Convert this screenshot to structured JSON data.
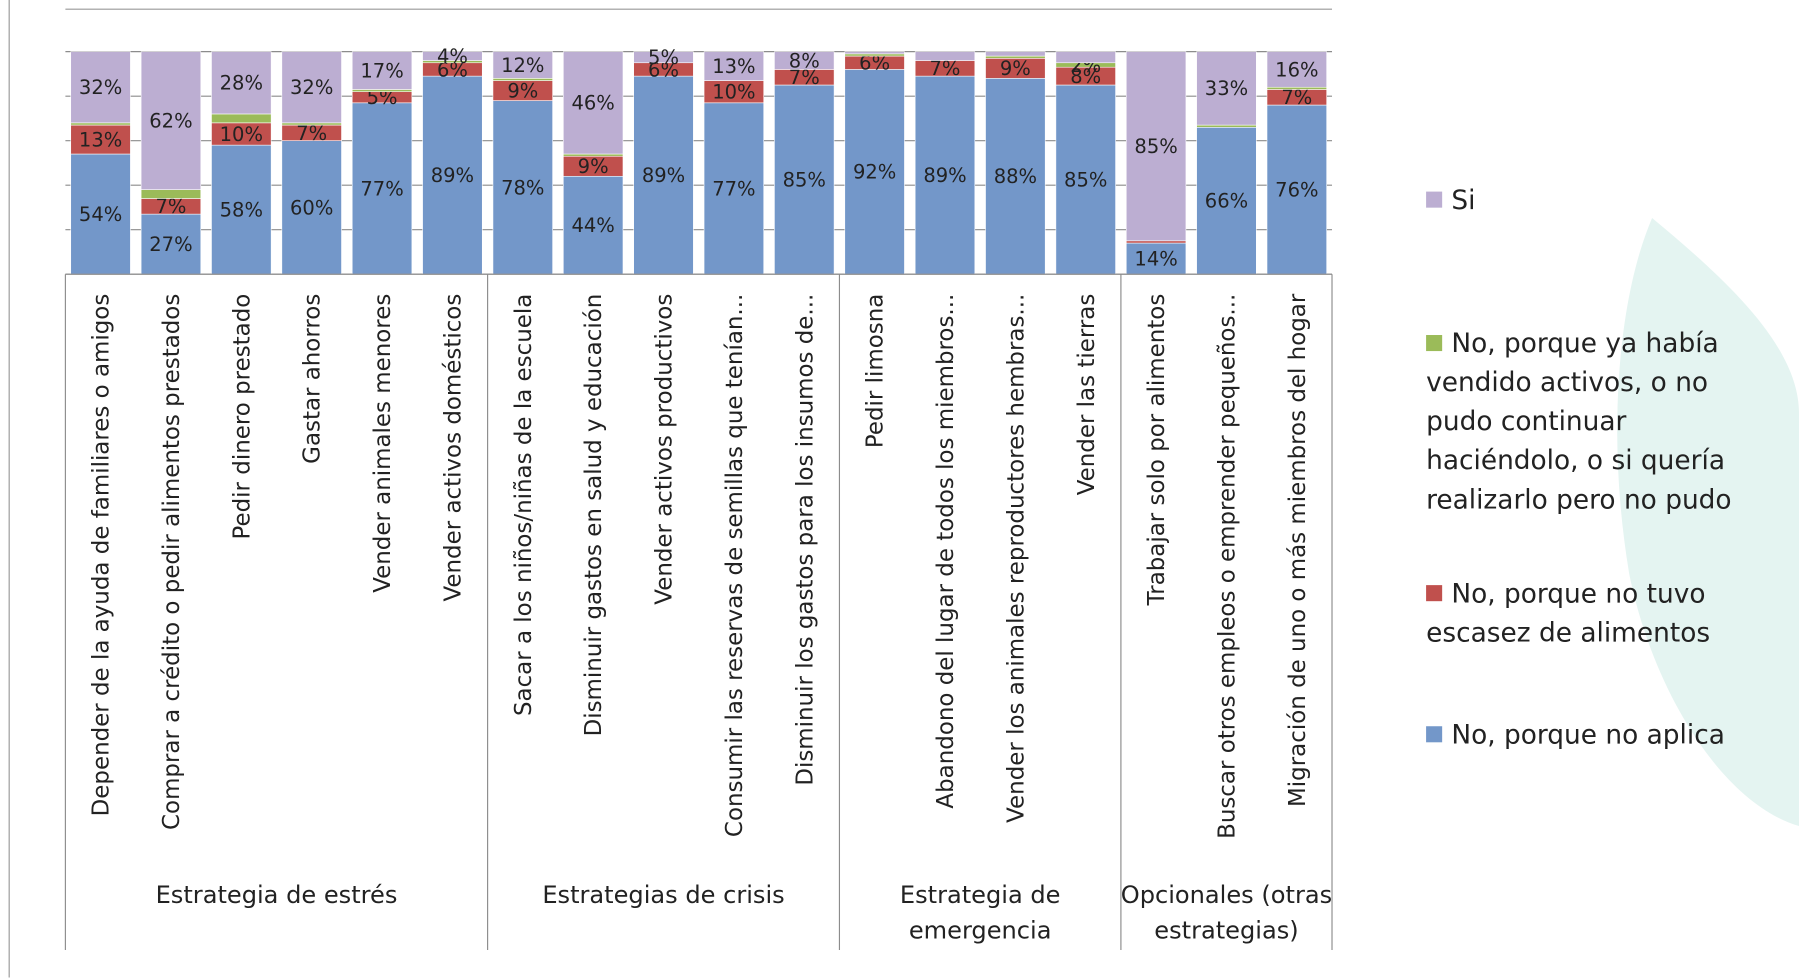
{
  "chart_data": {
    "type": "stacked_bar",
    "categories": [
      "Depender de la ayuda de familiares o amigos",
      "Comprar a crédito o pedir alimentos prestados",
      "Pedir dinero prestado",
      "Gastar ahorros",
      "Vender animales menores",
      "Vender activos domésticos",
      "Sacar a los niños/niñas de la escuela",
      "Disminuir gastos en salud y educación",
      "Vender activos productivos",
      "Consumir las  reservas de semillas que tenían...",
      "Disminuir los gastos para los insumos de...",
      "Pedir limosna",
      "Abandono del lugar de todos los miembros...",
      "Vender los animales reproductores hembras...",
      "Vender las tierras",
      "Trabajar solo por alimentos",
      "Buscar otros empleos o emprender pequeños...",
      "Migración de uno o más miembros del hogar"
    ],
    "groups": [
      {
        "label_lines": [
          "Estrategia de estrés"
        ],
        "start": 0,
        "end": 5
      },
      {
        "label_lines": [
          "Estrategias de crisis"
        ],
        "start": 6,
        "end": 10
      },
      {
        "label_lines": [
          "Estrategia de",
          "emergencia"
        ],
        "start": 11,
        "end": 14
      },
      {
        "label_lines": [
          "Opcionales (otras",
          "estrategias)"
        ],
        "start": 15,
        "end": 17
      }
    ],
    "series": [
      {
        "name": "No, porque no aplica",
        "color": "#7397c9",
        "values": [
          54,
          27,
          58,
          60,
          77,
          89,
          78,
          44,
          89,
          77,
          85,
          92,
          89,
          88,
          85,
          14,
          66,
          76
        ],
        "value_labels": [
          "54%",
          "27%",
          "58%",
          "60%",
          "77%",
          "89%",
          "78%",
          "44%",
          "89%",
          "77%",
          "85%",
          "92%",
          "89%",
          "88%",
          "85%",
          "14%",
          "66%",
          "76%"
        ]
      },
      {
        "name": "No, porque no tuvo escasez de alimentos",
        "color": "#c0504d",
        "values": [
          13,
          7,
          10,
          7,
          5,
          6,
          9,
          9,
          6,
          10,
          7,
          6,
          7,
          9,
          8,
          1,
          0,
          7
        ],
        "value_labels": [
          "13%",
          "7%",
          "10%",
          "7%",
          "5%",
          "6%",
          "9%",
          "9%",
          "6%",
          "10%",
          "7%",
          "6%",
          "7%",
          "9%",
          "8%",
          null,
          null,
          "7%"
        ]
      },
      {
        "name": "No, porque ya había vendido activos, o no pudo continuar haciéndolo, o si quería realizarlo pero no pudo",
        "color": "#9bbb59",
        "values": [
          1,
          4,
          4,
          1,
          1,
          1,
          1,
          1,
          0,
          0,
          0,
          1,
          0,
          1,
          2,
          0,
          1,
          1
        ],
        "value_labels": [
          null,
          null,
          null,
          null,
          null,
          null,
          null,
          null,
          null,
          null,
          null,
          null,
          null,
          null,
          "2%",
          null,
          null,
          null
        ]
      },
      {
        "name": "Si",
        "color": "#bcaed2",
        "values": [
          32,
          62,
          28,
          32,
          17,
          4,
          12,
          46,
          5,
          13,
          8,
          1,
          4,
          2,
          5,
          85,
          33,
          16
        ],
        "value_labels": [
          "32%",
          "62%",
          "28%",
          "32%",
          "17%",
          "4%",
          "12%",
          "46%",
          "5%",
          "13%",
          "8%",
          null,
          null,
          null,
          null,
          "85%",
          "33%",
          "16%"
        ]
      }
    ],
    "ylim": [
      0,
      100
    ],
    "yticks": [
      0,
      20,
      40,
      60,
      80,
      100
    ],
    "grid": true
  }
}
